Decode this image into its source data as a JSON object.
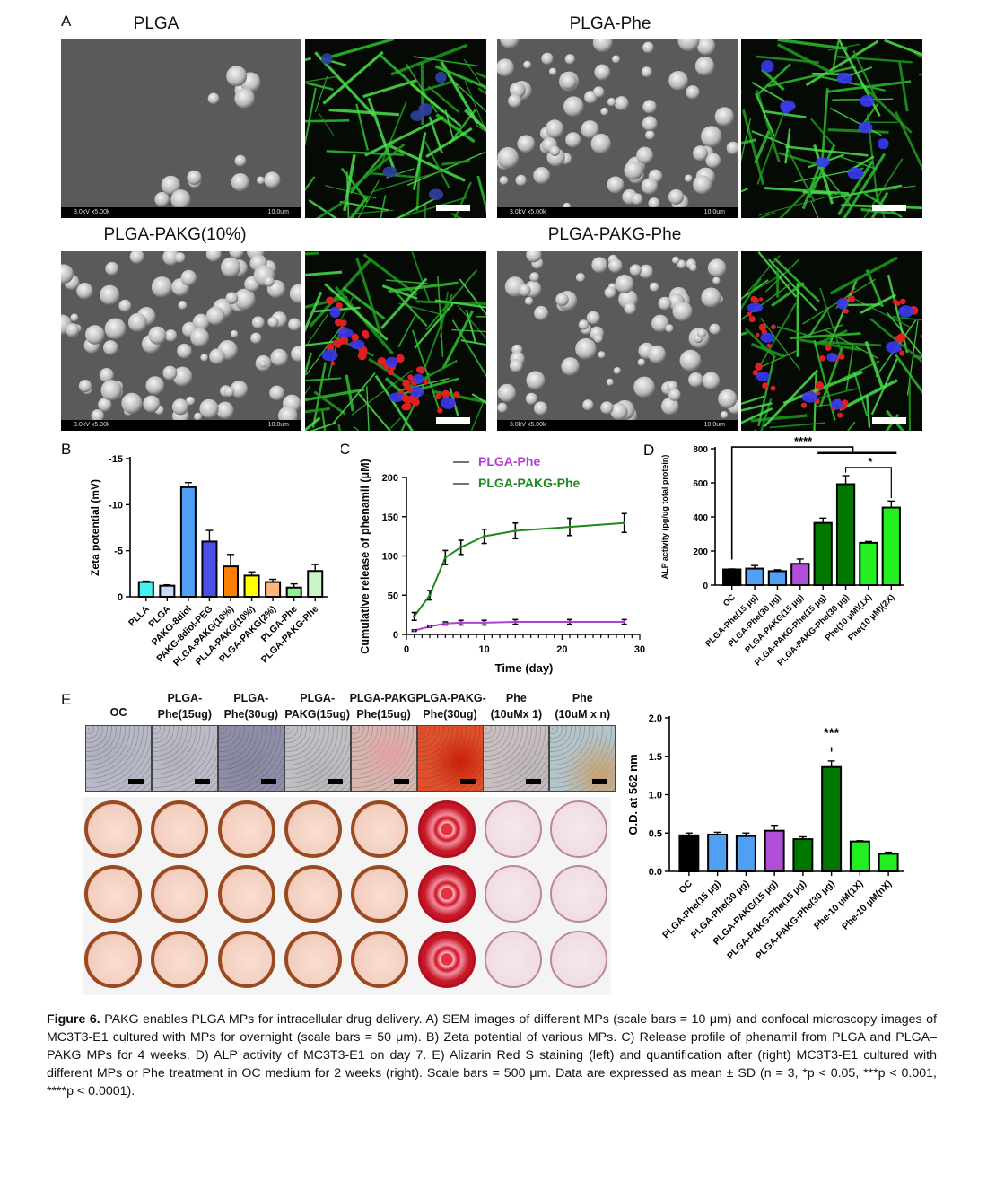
{
  "panel_a": {
    "label": "A",
    "groups": [
      {
        "title": "PLGA",
        "sem_left": "3.0kV x5.00k",
        "sem_right": "10.0um"
      },
      {
        "title": "PLGA-Phe",
        "sem_left": "3.0kV x5.00k",
        "sem_right": "10.0um"
      },
      {
        "title": "PLGA-PAKG(10%)",
        "sem_left": "3.0kV x5.00k",
        "sem_right": "10.0um"
      },
      {
        "title": "PLGA-PAKG-Phe",
        "sem_left": "3.0kV x5.00k",
        "sem_right": "10.0um"
      }
    ]
  },
  "panel_e_images": {
    "label": "E",
    "headers": [
      "OC",
      "PLGA-\nPhe(15ug)",
      "PLGA-\nPhe(30ug)",
      "PLGA-\nPAKG(15ug)",
      "PLGA-PAKG-\nPhe(15ug)",
      "PLGA-PAKG-\nPhe(30ug)",
      "Phe\n(10uMx 1)",
      "Phe\n(10uM x n)"
    ]
  },
  "chart_data": [
    {
      "panel": "B",
      "type": "bar",
      "ylabel": "Zeta potential (mV)",
      "ylim": [
        0,
        -15
      ],
      "yticks": [
        0,
        -5,
        -10,
        -15
      ],
      "ytick_labels": [
        "0",
        "-5",
        "-10",
        "-15"
      ],
      "categories": [
        "PLLA",
        "PLGA",
        "PAKG-8diol",
        "PAKG-8diol-PEG",
        "PLGA-PAKG(10%)",
        "PLLA-PAKG(10%)",
        "PLGA-PAKG(2%)",
        "PLGA-Phe",
        "PLGA-PAKG-Phe"
      ],
      "values": [
        -1.6,
        -1.2,
        -11.9,
        -6.0,
        -3.3,
        -2.3,
        -1.6,
        -1.0,
        -2.8
      ],
      "errors": [
        0.1,
        0.1,
        0.5,
        1.2,
        1.3,
        0.4,
        0.3,
        0.4,
        0.7
      ],
      "colors": [
        "#40f2f2",
        "#c6dcf6",
        "#4f9ff5",
        "#4b50e6",
        "#ff7f00",
        "#ffff00",
        "#ffb67a",
        "#8ef08e",
        "#c9f6c4"
      ]
    },
    {
      "panel": "C",
      "type": "line",
      "xlabel": "Time (day)",
      "ylabel": "Cumulative release of phenamil (μM)",
      "xlim": [
        0,
        30
      ],
      "ylim": [
        0,
        200
      ],
      "xticks": [
        0,
        10,
        20,
        30
      ],
      "yticks": [
        0,
        50,
        100,
        150,
        200
      ],
      "legend_position": "top",
      "x": [
        1,
        3,
        5,
        7,
        10,
        14,
        21,
        28
      ],
      "series": [
        {
          "name": "PLGA-Phe",
          "color": "#b23fd0",
          "values": [
            5,
            10,
            14,
            15,
            15,
            16,
            16,
            16
          ],
          "errors": [
            1,
            1,
            2,
            3,
            3,
            3,
            3,
            3
          ]
        },
        {
          "name": "PLGA-PAKG-Phe",
          "color": "#1e8a1e",
          "values": [
            23,
            50,
            98,
            111,
            125,
            132,
            137,
            142
          ],
          "errors": [
            5,
            6,
            9,
            9,
            9,
            10,
            11,
            12
          ]
        }
      ]
    },
    {
      "panel": "D",
      "type": "bar",
      "ylabel": "ALP activity (pg/ug total protein)",
      "ylim": [
        0,
        800
      ],
      "yticks": [
        0,
        200,
        400,
        600,
        800
      ],
      "categories": [
        "OC",
        "PLGA-Phe(15 μg)",
        "PLGA-Phe(30 μg)",
        "PLGA-PAKG(15 μg)",
        "PLGA-PAKG-Phe(15 μg)",
        "PLGA-PAKG-Phe(30 μg)",
        "Phe(10 μM)(1X)",
        "Phe(10 μM)(2X)"
      ],
      "values": [
        92,
        97,
        82,
        125,
        365,
        592,
        248,
        455
      ],
      "errors": [
        3,
        18,
        8,
        28,
        28,
        50,
        8,
        38
      ],
      "colors": [
        "#000000",
        "#4fa0f2",
        "#4fa0f2",
        "#b24fd8",
        "#007800",
        "#007800",
        "#22ee22",
        "#22ee22"
      ],
      "annotations": [
        "****",
        "*"
      ]
    },
    {
      "panel": "E",
      "type": "bar",
      "ylabel": "O.D. at 562 nm",
      "ylim": [
        0,
        2.0
      ],
      "yticks": [
        0,
        0.5,
        1.0,
        1.5,
        2.0
      ],
      "ytick_labels": [
        "0.0",
        "0.5",
        "1.0",
        "1.5",
        "2.0"
      ],
      "categories": [
        "OC",
        "PLGA-Phe(15 μg)",
        "PLGA-Phe(30 μg)",
        "PLGA-PAKG(15 μg)",
        "PLGA-PAKG-Phe(15 μg)",
        "PLGA-PAKG-Phe(30 μg)",
        "Phe-10 μM(1X)",
        "Phe-10 μM(nX)"
      ],
      "values": [
        0.47,
        0.48,
        0.46,
        0.53,
        0.42,
        1.36,
        0.39,
        0.23
      ],
      "errors": [
        0.03,
        0.03,
        0.04,
        0.07,
        0.03,
        0.08,
        0.01,
        0.02
      ],
      "colors": [
        "#000000",
        "#4fa0f2",
        "#4fa0f2",
        "#b24fd8",
        "#007800",
        "#007800",
        "#22ee22",
        "#22ee22"
      ],
      "annotations": [
        "***"
      ]
    }
  ],
  "caption": {
    "label": "Figure 6.",
    "text": " PAKG enables PLGA MPs for intracellular drug delivery. A) SEM images of different MPs (scale bars = 10 μm) and confocal microscopy images of MC3T3-E1 cultured with MPs for overnight (scale bars = 50 μm). B) Zeta potential of various MPs. C) Release profile of phenamil from PLGA and PLGA–PAKG MPs for 4 weeks. D) ALP activity of MC3T3-E1 on day 7. E) Alizarin Red S staining (left) and quantification after (right) MC3T3-E1 cultured with different MPs or Phe treatment in OC medium for 2 weeks (right). Scale bars = 500 μm. Data are expressed as mean ± SD (n = 3, *p < 0.05, ***p < 0.001, ****p < 0.0001)."
  }
}
